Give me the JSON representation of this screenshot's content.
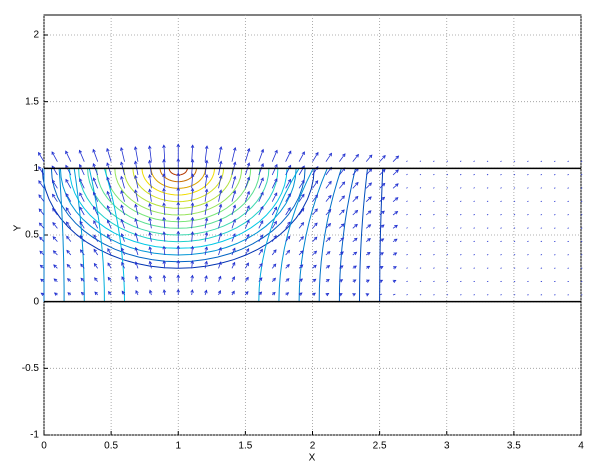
{
  "chart_data": {
    "type": "contour",
    "x_label": "X",
    "y_label": "Y",
    "xlim": [
      0,
      4
    ],
    "ylim": [
      -1,
      2.15
    ],
    "xticks": [
      0,
      0.5,
      1,
      1.5,
      2,
      2.5,
      3,
      3.5,
      4
    ],
    "yticks": [
      -1,
      -0.5,
      0,
      0.5,
      1,
      1.5,
      2
    ],
    "grid": true,
    "boundary_lines": [
      0,
      1
    ],
    "boundary_color": "#000000"
  }
}
